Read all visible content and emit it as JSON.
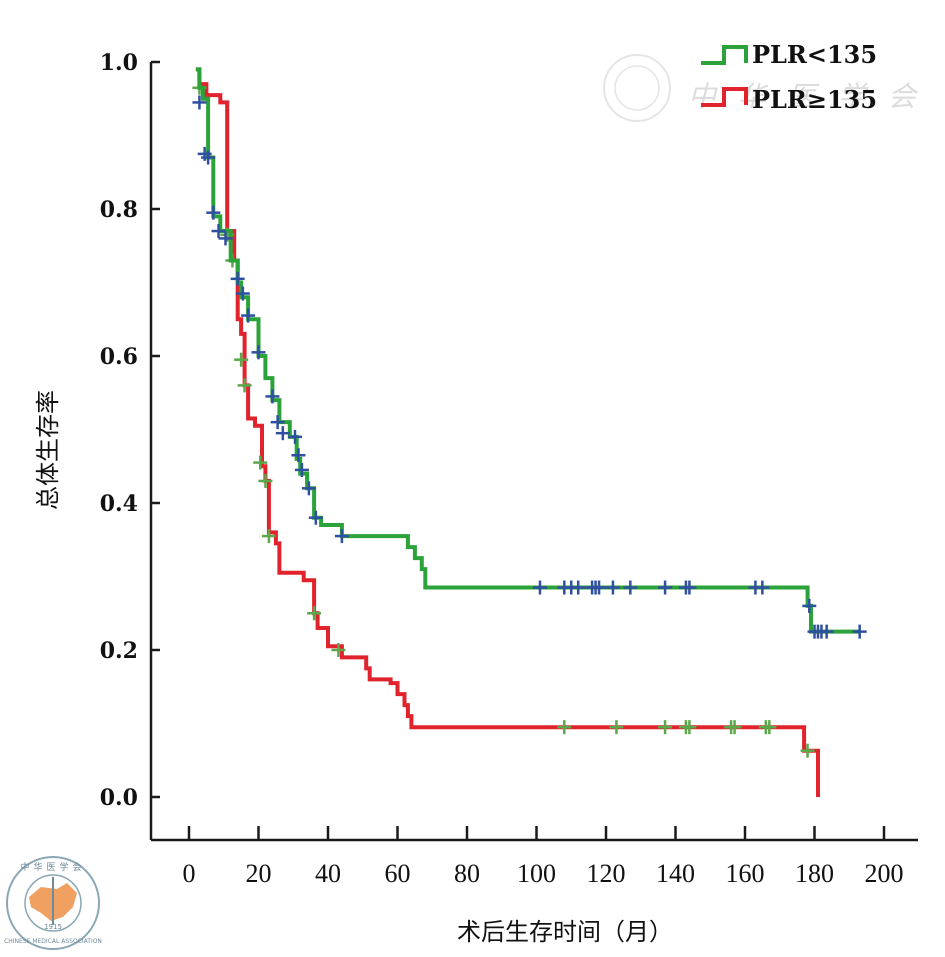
{
  "chart_data": {
    "type": "line",
    "subtype": "kaplan-meier-step",
    "title": "",
    "xlabel": "术后生存时间（月）",
    "ylabel": "总体生存率",
    "xlim": [
      0,
      200
    ],
    "ylim": [
      0.0,
      1.0
    ],
    "xticks": [
      "0",
      "20",
      "40",
      "60",
      "80",
      "100",
      "120",
      "140",
      "160",
      "180",
      "200"
    ],
    "yticks": [
      "0.0",
      "0.2",
      "0.4",
      "0.6",
      "0.8",
      "1.0"
    ],
    "grid": false,
    "legend_position": "top-right",
    "series": [
      {
        "name": "PLR<135",
        "color": "#2ca33a",
        "censor_color": "#2f4fa0",
        "steps": [
          [
            2,
            0.99
          ],
          [
            3,
            0.965
          ],
          [
            4,
            0.95
          ],
          [
            5.5,
            0.87
          ],
          [
            7,
            0.79
          ],
          [
            9,
            0.77
          ],
          [
            12,
            0.73
          ],
          [
            14,
            0.7
          ],
          [
            15,
            0.68
          ],
          [
            17,
            0.65
          ],
          [
            20,
            0.6
          ],
          [
            22,
            0.57
          ],
          [
            24,
            0.54
          ],
          [
            26,
            0.51
          ],
          [
            29,
            0.49
          ],
          [
            31,
            0.46
          ],
          [
            32,
            0.44
          ],
          [
            34,
            0.42
          ],
          [
            36,
            0.38
          ],
          [
            38,
            0.37
          ],
          [
            44,
            0.355
          ],
          [
            63,
            0.34
          ],
          [
            65,
            0.325
          ],
          [
            67,
            0.31
          ],
          [
            68,
            0.285
          ],
          [
            178,
            0.26
          ],
          [
            179,
            0.225
          ],
          [
            193,
            0.225
          ]
        ],
        "censored": [
          [
            3,
            0.945
          ],
          [
            4.5,
            0.875
          ],
          [
            5.5,
            0.87
          ],
          [
            7,
            0.795
          ],
          [
            8.5,
            0.77
          ],
          [
            10.5,
            0.76
          ],
          [
            14,
            0.705
          ],
          [
            15.5,
            0.685
          ],
          [
            17,
            0.655
          ],
          [
            20,
            0.605
          ],
          [
            24,
            0.545
          ],
          [
            25.5,
            0.51
          ],
          [
            27,
            0.495
          ],
          [
            30.5,
            0.49
          ],
          [
            31.5,
            0.465
          ],
          [
            32.5,
            0.445
          ],
          [
            34.5,
            0.42
          ],
          [
            36.5,
            0.38
          ],
          [
            44,
            0.355
          ],
          [
            101,
            0.285
          ],
          [
            108,
            0.285
          ],
          [
            110,
            0.285
          ],
          [
            112,
            0.285
          ],
          [
            116,
            0.285
          ],
          [
            117,
            0.285
          ],
          [
            118,
            0.285
          ],
          [
            122,
            0.285
          ],
          [
            127,
            0.285
          ],
          [
            137,
            0.285
          ],
          [
            143,
            0.285
          ],
          [
            144,
            0.285
          ],
          [
            163,
            0.285
          ],
          [
            165,
            0.285
          ],
          [
            178.5,
            0.26
          ],
          [
            180,
            0.225
          ],
          [
            181,
            0.225
          ],
          [
            182,
            0.225
          ],
          [
            183.5,
            0.225
          ],
          [
            193,
            0.225
          ]
        ]
      },
      {
        "name": "PLR≥135",
        "color": "#e0232c",
        "censor_color": "#5aa84a",
        "steps": [
          [
            2,
            0.99
          ],
          [
            3,
            0.97
          ],
          [
            5,
            0.955
          ],
          [
            9,
            0.945
          ],
          [
            11,
            0.77
          ],
          [
            13,
            0.73
          ],
          [
            14,
            0.65
          ],
          [
            15,
            0.63
          ],
          [
            16,
            0.56
          ],
          [
            17,
            0.515
          ],
          [
            19,
            0.505
          ],
          [
            21,
            0.45
          ],
          [
            22,
            0.43
          ],
          [
            23,
            0.36
          ],
          [
            25,
            0.345
          ],
          [
            26,
            0.305
          ],
          [
            33,
            0.295
          ],
          [
            36,
            0.25
          ],
          [
            37,
            0.23
          ],
          [
            40,
            0.205
          ],
          [
            44,
            0.19
          ],
          [
            51,
            0.175
          ],
          [
            52,
            0.16
          ],
          [
            58,
            0.155
          ],
          [
            60,
            0.14
          ],
          [
            62,
            0.125
          ],
          [
            63,
            0.11
          ],
          [
            64,
            0.095
          ],
          [
            177,
            0.063
          ],
          [
            181,
            0.0
          ]
        ],
        "censored": [
          [
            3,
            0.965
          ],
          [
            11,
            0.765
          ],
          [
            12.5,
            0.73
          ],
          [
            15,
            0.595
          ],
          [
            16,
            0.56
          ],
          [
            20.5,
            0.455
          ],
          [
            22,
            0.43
          ],
          [
            23,
            0.355
          ],
          [
            36,
            0.25
          ],
          [
            43,
            0.2
          ],
          [
            108,
            0.095
          ],
          [
            123,
            0.095
          ],
          [
            137,
            0.095
          ],
          [
            143,
            0.095
          ],
          [
            144,
            0.095
          ],
          [
            156,
            0.095
          ],
          [
            157,
            0.095
          ],
          [
            166,
            0.095
          ],
          [
            167,
            0.095
          ],
          [
            178,
            0.063
          ]
        ]
      }
    ]
  },
  "watermark": {
    "text": "中华医学会",
    "logo_text": "CHINESE MEDICAL ASSOCIATION",
    "logo_chars": "中华医学会",
    "logo_year": "1915"
  }
}
